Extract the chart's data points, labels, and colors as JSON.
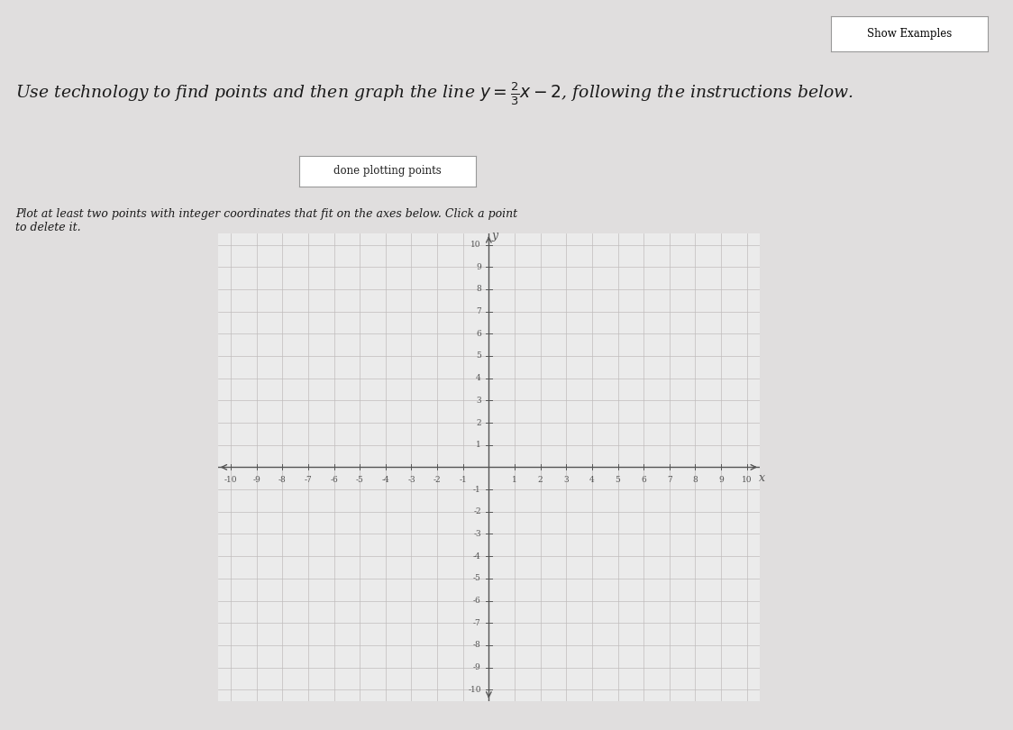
{
  "title_plain": "Use technology to find points and then graph the line y = 2/3 x - 2, following the instructions below.",
  "show_examples_text": "Show Examples",
  "button_text": "done plotting points",
  "instruction_text": "Plot at least two points with integer coordinates that fit on the axes below. Click a point\nto delete it.",
  "page_bg_color": "#e0dede",
  "grid_bg_color": "#ebebeb",
  "grid_color": "#c0bcbc",
  "axis_color": "#555555",
  "text_color": "#1a1a1a",
  "xmin": -10,
  "xmax": 10,
  "ymin": -10,
  "ymax": 10,
  "title_fontsize": 13.5,
  "tick_fontsize": 6.5,
  "instruction_fontsize": 9.0,
  "button_fontsize": 8.5
}
